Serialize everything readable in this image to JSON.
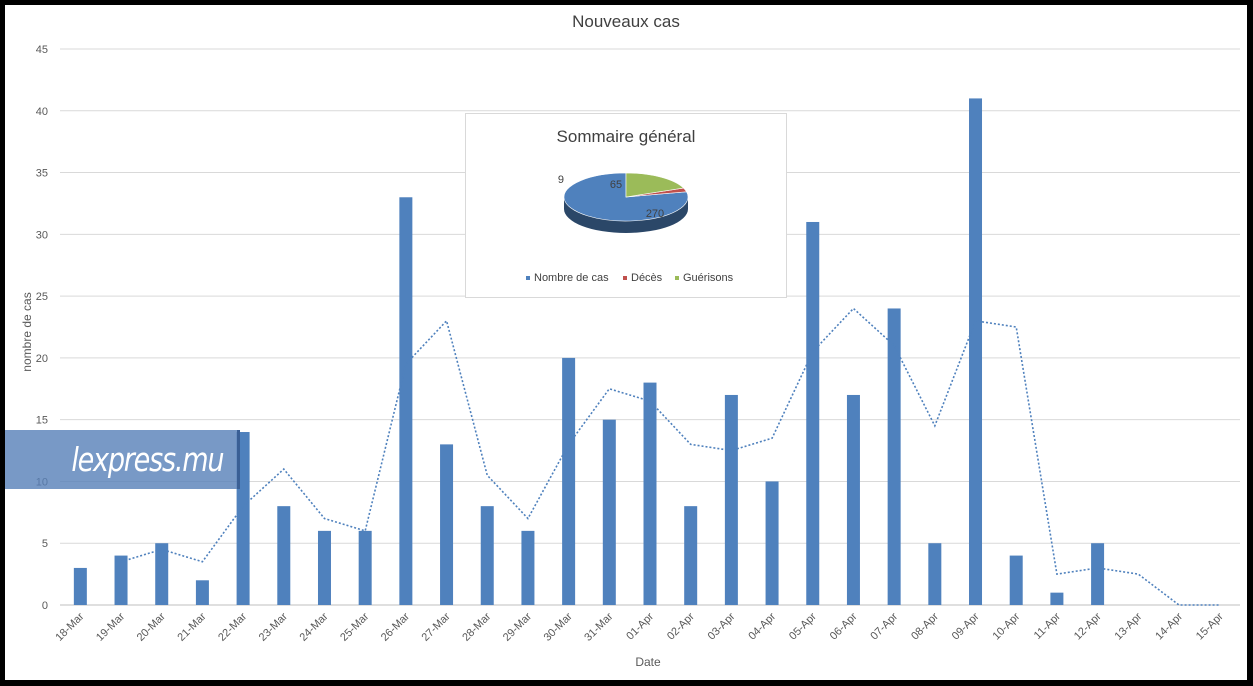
{
  "chart_data": [
    {
      "type": "bar",
      "title": "Nouveaux cas",
      "xlabel": "Date",
      "ylabel": "nombre de cas",
      "ylim": [
        0,
        45
      ],
      "yticks": [
        0,
        5,
        10,
        15,
        20,
        25,
        30,
        35,
        40,
        45
      ],
      "grid": true,
      "categories": [
        "18-Mar",
        "19-Mar",
        "20-Mar",
        "21-Mar",
        "22-Mar",
        "23-Mar",
        "24-Mar",
        "25-Mar",
        "26-Mar",
        "27-Mar",
        "28-Mar",
        "29-Mar",
        "30-Mar",
        "31-Mar",
        "01-Apr",
        "02-Apr",
        "03-Apr",
        "04-Apr",
        "05-Apr",
        "06-Apr",
        "07-Apr",
        "08-Apr",
        "09-Apr",
        "10-Apr",
        "11-Apr",
        "12-Apr",
        "13-Apr",
        "14-Apr",
        "15-Apr"
      ],
      "series": [
        {
          "type": "bar",
          "color": "#4f81bd",
          "values": [
            3,
            4,
            5,
            2,
            14,
            8,
            6,
            6,
            33,
            13,
            8,
            6,
            20,
            15,
            18,
            8,
            17,
            10,
            31,
            17,
            24,
            5,
            41,
            4,
            1,
            5,
            0,
            0,
            0
          ]
        },
        {
          "type": "line",
          "style": "dotted",
          "color": "#4f81bd",
          "values": [
            null,
            3.5,
            4.5,
            3.5,
            8,
            11,
            7,
            6,
            19.5,
            23,
            10.5,
            7,
            13,
            17.5,
            16.5,
            13,
            12.5,
            13.5,
            20.5,
            24,
            21,
            14.5,
            23,
            22.5,
            2.5,
            3,
            2.5,
            0,
            0
          ]
        }
      ]
    },
    {
      "type": "pie",
      "title": "Sommaire général",
      "legend_position": "bottom",
      "slices": [
        {
          "label": "Nombre de cas",
          "value": 270,
          "color": "#4f81bd"
        },
        {
          "label": "Décès",
          "value": 9,
          "color": "#c0504d"
        },
        {
          "label": "Guérisons",
          "value": 65,
          "color": "#9bbb59"
        }
      ]
    }
  ],
  "watermark": {
    "text": "lexpress.mu"
  }
}
